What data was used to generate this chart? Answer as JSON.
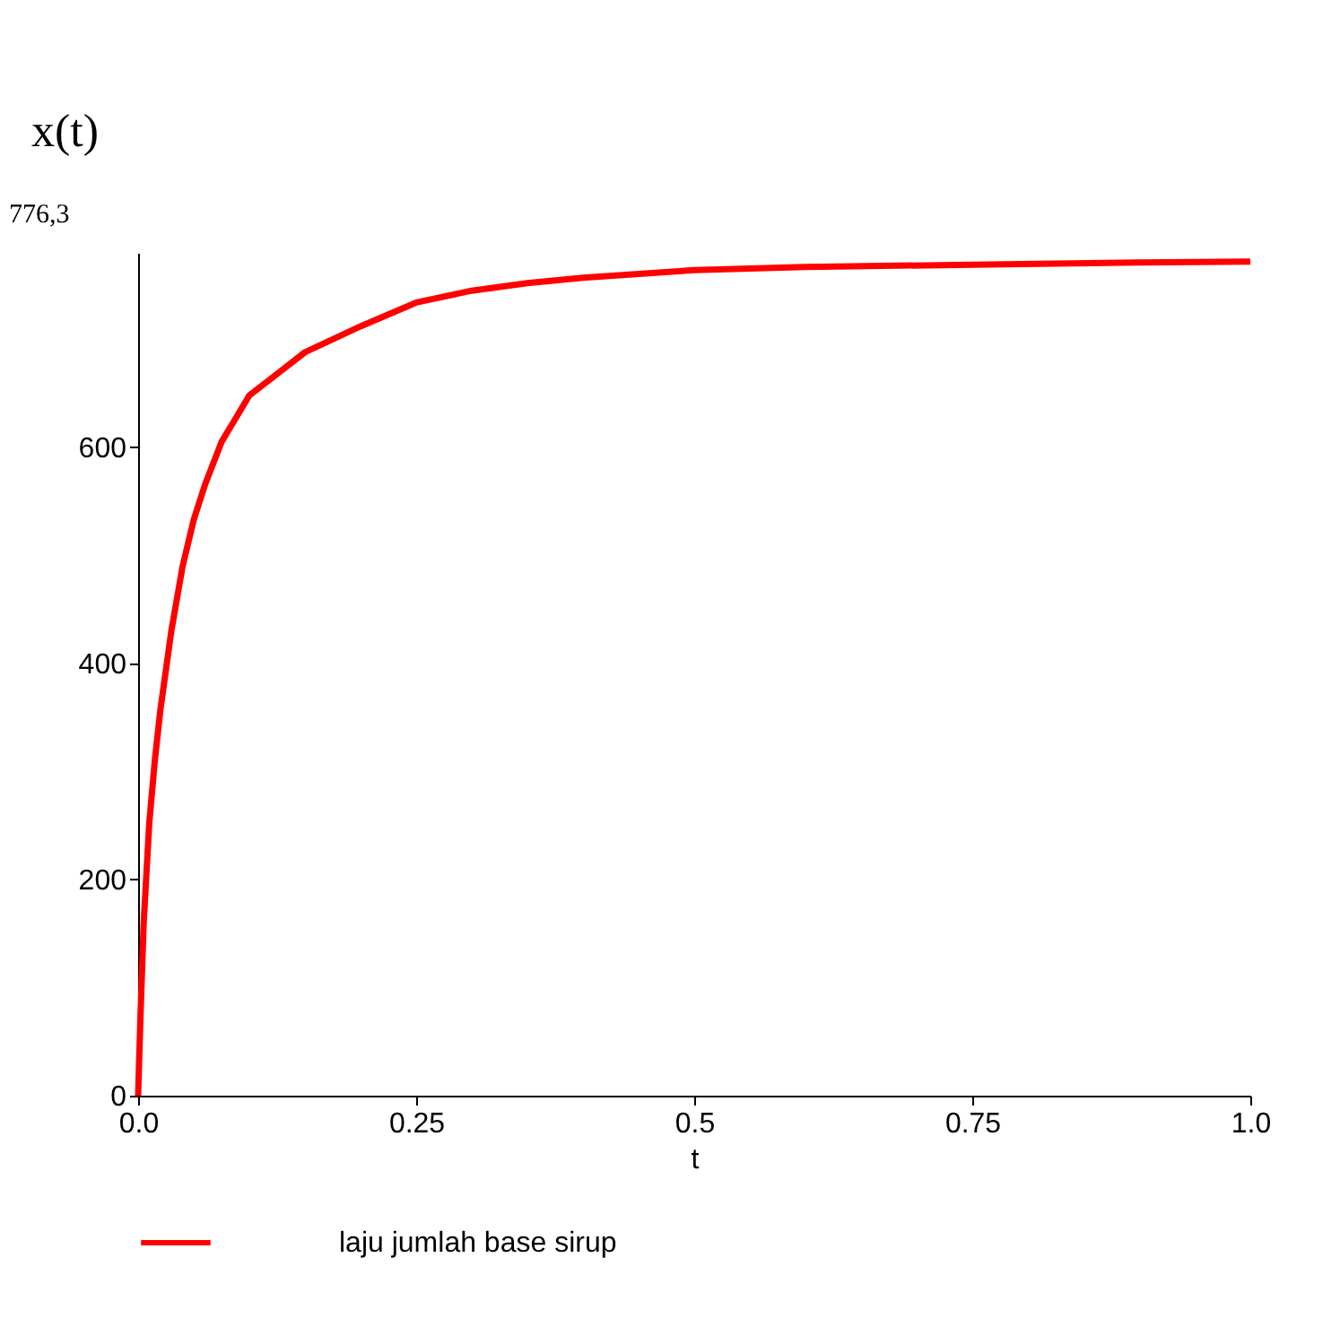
{
  "chart_data": {
    "type": "line",
    "xlabel": "t",
    "ylabel": "x(t)",
    "annotations": [
      "776,3"
    ],
    "x": [
      0,
      0.002,
      0.005,
      0.01,
      0.015,
      0.02,
      0.03,
      0.04,
      0.05,
      0.06,
      0.075,
      0.1,
      0.125,
      0.15,
      0.2,
      0.25,
      0.3,
      0.35,
      0.4,
      0.5,
      0.6,
      0.75,
      0.9,
      1.0
    ],
    "series": [
      {
        "name": "laju jumlah base sirup",
        "color": "#ff0000",
        "values": [
          0,
          70,
          160,
          252,
          310,
          357,
          431,
          490,
          533,
          565,
          605,
          648,
          668,
          688,
          712,
          734,
          745,
          752,
          757,
          764,
          767,
          769,
          771,
          772
        ]
      }
    ],
    "xlim": [
      0,
      1
    ],
    "xticks": [
      {
        "value": 0,
        "label": "0.0"
      },
      0.25,
      0.5,
      0.75,
      {
        "value": 1,
        "label": "1.0"
      }
    ],
    "ylim": [
      0,
      780
    ],
    "yticks": [
      0,
      200,
      400,
      600
    ],
    "grid": false,
    "legend": "bottom",
    "line_style": "solid",
    "marker": "none"
  }
}
